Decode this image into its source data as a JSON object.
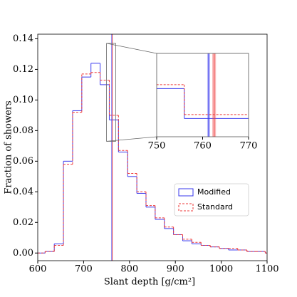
{
  "chart_data": {
    "type": "histogram",
    "xlabel": "Slant depth [g/cm²]",
    "ylabel": "Fraction of showers",
    "bins": [
      616,
      636,
      656,
      676,
      696,
      716,
      736,
      756,
      776,
      796,
      816,
      836,
      856,
      876,
      896,
      916,
      936,
      956,
      976,
      996,
      1016,
      1036,
      1056,
      1076,
      1096
    ],
    "series": [
      {
        "name": "Modified",
        "color": "#3a3aee",
        "linestyle": "solid",
        "values": [
          0.001,
          0.006,
          0.06,
          0.093,
          0.115,
          0.124,
          0.11,
          0.087,
          0.066,
          0.05,
          0.039,
          0.03,
          0.022,
          0.016,
          0.012,
          0.008,
          0.006,
          0.005,
          0.004,
          0.003,
          0.002,
          0.002,
          0.001,
          0.001
        ],
        "mean": 761.3,
        "mean_band": [
          761.0,
          761.6
        ]
      },
      {
        "name": "Standard",
        "color": "#ee3a3a",
        "linestyle": "dashed",
        "values": [
          0.001,
          0.005,
          0.058,
          0.092,
          0.117,
          0.118,
          0.113,
          0.09,
          0.067,
          0.052,
          0.04,
          0.031,
          0.023,
          0.017,
          0.012,
          0.009,
          0.007,
          0.005,
          0.004,
          0.003,
          0.003,
          0.002,
          0.001,
          0.001
        ],
        "mean": 762.5,
        "mean_band": [
          762.1,
          762.9
        ]
      }
    ],
    "xlim": [
      600,
      1100
    ],
    "xticks": [
      600,
      700,
      800,
      900,
      1000,
      1100
    ],
    "ylim": [
      -0.005,
      0.143
    ],
    "yticks": [
      {
        "value": 0,
        "label": "0.00"
      },
      {
        "value": 0.02,
        "label": "0.02"
      },
      {
        "value": 0.04,
        "label": "0.04"
      },
      {
        "value": 0.06,
        "label": "0.06"
      },
      {
        "value": 0.08,
        "label": "0.08"
      },
      {
        "value": 0.1,
        "label": "0.10"
      },
      {
        "value": 0.12,
        "label": "0.12"
      },
      {
        "value": 0.14,
        "label": "0.14"
      }
    ],
    "legend": "lower right",
    "inset": {
      "xlim": [
        750,
        770
      ],
      "ylim": [
        0.073,
        0.137
      ],
      "xticks": [
        750,
        760,
        770
      ]
    }
  }
}
